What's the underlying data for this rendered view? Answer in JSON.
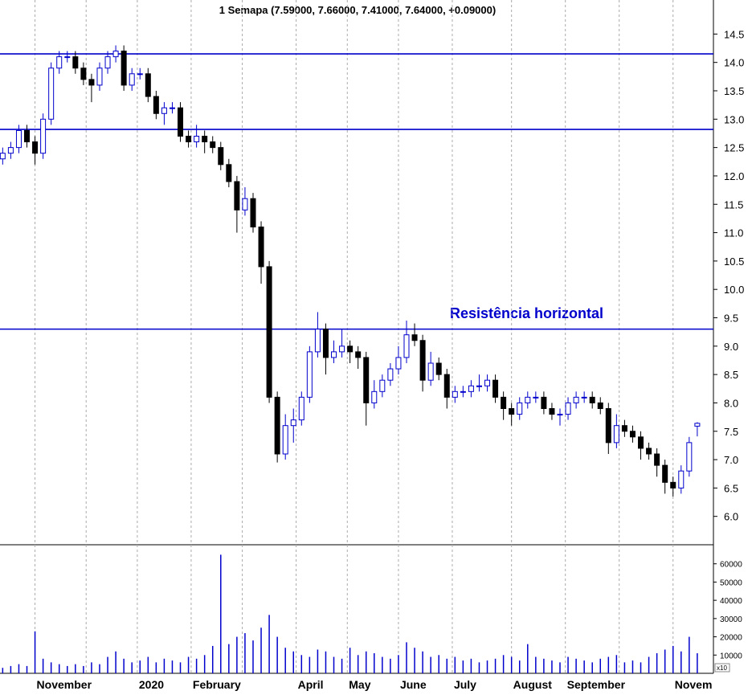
{
  "chart_data": {
    "type": "candlestick",
    "title": "1 Semapa (7.59000, 7.66000, 7.41000, 7.64000, +0.09000)",
    "annotation": "Resistência horizontal",
    "volume_unit_label": "x10",
    "up_color": "#0000cc",
    "down_color": "#000000",
    "line_color": "#0000cc",
    "volume_color": "#0000cc",
    "hlines": [
      14.15,
      12.82,
      9.3
    ],
    "xlim": [
      0,
      265
    ],
    "xticks": [
      {
        "value": 13,
        "label": "November"
      },
      {
        "value": 32,
        "label": null
      },
      {
        "value": 51,
        "label": "2020"
      },
      {
        "value": 71,
        "label": "February"
      },
      {
        "value": 90,
        "label": null
      },
      {
        "value": 110,
        "label": "April"
      },
      {
        "value": 129,
        "label": "May"
      },
      {
        "value": 148,
        "label": "June"
      },
      {
        "value": 168,
        "label": "July"
      },
      {
        "value": 190,
        "label": "August"
      },
      {
        "value": 210,
        "label": "September"
      },
      {
        "value": 230,
        "label": null
      },
      {
        "value": 250,
        "label": "Novem"
      }
    ],
    "ylim": [
      5.5,
      15.1
    ],
    "yticks": [
      {
        "value": 6,
        "label": "6.0"
      },
      6.5,
      {
        "value": 7,
        "label": "7.0"
      },
      7.5,
      {
        "value": 8,
        "label": "8.0"
      },
      8.5,
      {
        "value": 9,
        "label": "9.0"
      },
      9.5,
      {
        "value": 10,
        "label": "10.0"
      },
      10.5,
      {
        "value": 11,
        "label": "11.0"
      },
      11.5,
      {
        "value": 12,
        "label": "12.0"
      },
      12.5,
      {
        "value": 13,
        "label": "13.0"
      },
      13.5,
      {
        "value": 14,
        "label": "14.0"
      },
      14.5
    ],
    "vlim": [
      0,
      70000
    ],
    "vticks": [
      10000,
      20000,
      30000,
      40000,
      50000,
      60000
    ],
    "x": [
      1,
      4,
      7,
      10,
      13,
      16,
      19,
      22,
      25,
      28,
      31,
      34,
      37,
      40,
      43,
      46,
      49,
      52,
      55,
      58,
      61,
      64,
      67,
      70,
      73,
      76,
      79,
      82,
      85,
      88,
      91,
      94,
      97,
      100,
      103,
      106,
      109,
      112,
      115,
      118,
      121,
      124,
      127,
      130,
      133,
      136,
      139,
      142,
      145,
      148,
      151,
      154,
      157,
      160,
      163,
      166,
      169,
      172,
      175,
      178,
      181,
      184,
      187,
      190,
      193,
      196,
      199,
      202,
      205,
      208,
      211,
      214,
      217,
      220,
      223,
      226,
      229,
      232,
      235,
      238,
      241,
      244,
      247,
      250,
      253,
      256,
      259
    ],
    "open": [
      12.3,
      12.4,
      12.5,
      12.8,
      12.6,
      12.4,
      13.0,
      13.9,
      14.1,
      14.1,
      13.9,
      13.7,
      13.6,
      13.9,
      14.1,
      14.2,
      13.6,
      13.8,
      13.8,
      13.4,
      13.1,
      13.2,
      13.2,
      12.7,
      12.6,
      12.7,
      12.6,
      12.5,
      12.2,
      11.9,
      11.4,
      11.6,
      11.1,
      10.4,
      8.1,
      7.1,
      7.6,
      7.7,
      8.1,
      8.9,
      9.3,
      8.8,
      8.9,
      9.0,
      8.9,
      8.8,
      8.0,
      8.2,
      8.4,
      8.6,
      8.8,
      9.2,
      9.1,
      8.4,
      8.7,
      8.5,
      8.1,
      8.2,
      8.2,
      8.3,
      8.3,
      8.4,
      8.1,
      7.9,
      7.8,
      8.0,
      8.1,
      8.1,
      7.9,
      7.8,
      7.8,
      8.0,
      8.1,
      8.1,
      8.0,
      7.9,
      7.3,
      7.6,
      7.5,
      7.4,
      7.2,
      7.1,
      6.9,
      6.6,
      6.5,
      6.8,
      7.59
    ],
    "high": [
      12.5,
      12.6,
      12.9,
      12.9,
      12.7,
      13.1,
      14.0,
      14.2,
      14.2,
      14.2,
      14.0,
      13.8,
      14.0,
      14.2,
      14.3,
      14.3,
      13.9,
      13.9,
      13.9,
      13.5,
      13.3,
      13.3,
      13.3,
      12.8,
      12.9,
      12.8,
      12.7,
      12.6,
      12.3,
      12.0,
      11.8,
      11.7,
      11.2,
      10.5,
      8.2,
      7.8,
      7.9,
      8.2,
      9.0,
      9.6,
      9.4,
      9.1,
      9.3,
      9.1,
      9.0,
      8.9,
      8.4,
      8.5,
      8.7,
      9.0,
      9.45,
      9.4,
      9.2,
      8.9,
      8.8,
      8.6,
      8.3,
      8.3,
      8.4,
      8.5,
      8.5,
      8.5,
      8.2,
      8.0,
      8.1,
      8.2,
      8.2,
      8.2,
      8.0,
      7.9,
      8.1,
      8.2,
      8.2,
      8.2,
      8.1,
      8.0,
      7.8,
      7.7,
      7.6,
      7.5,
      7.3,
      7.2,
      7.0,
      6.7,
      6.9,
      7.4,
      7.66
    ],
    "low": [
      12.2,
      12.3,
      12.4,
      12.5,
      12.2,
      12.3,
      12.9,
      13.8,
      14.0,
      13.8,
      13.6,
      13.3,
      13.5,
      13.8,
      14.0,
      13.5,
      13.5,
      13.7,
      13.3,
      13.0,
      12.9,
      13.1,
      12.6,
      12.5,
      12.5,
      12.4,
      12.4,
      12.1,
      11.8,
      11.0,
      11.3,
      11.0,
      10.1,
      8.0,
      6.95,
      7.0,
      7.3,
      7.6,
      8.0,
      8.8,
      8.5,
      8.7,
      8.8,
      8.7,
      8.6,
      7.6,
      7.9,
      8.1,
      8.3,
      8.5,
      8.7,
      9.0,
      8.2,
      8.3,
      8.4,
      7.9,
      8.0,
      8.1,
      8.1,
      8.2,
      8.2,
      8.0,
      7.7,
      7.6,
      7.7,
      7.9,
      8.0,
      7.8,
      7.7,
      7.6,
      7.7,
      7.9,
      8.0,
      7.9,
      7.8,
      7.1,
      7.2,
      7.4,
      7.3,
      7.0,
      7.0,
      6.7,
      6.4,
      6.35,
      6.4,
      6.7,
      7.41
    ],
    "close": [
      12.4,
      12.5,
      12.8,
      12.6,
      12.4,
      13.0,
      13.9,
      14.1,
      14.1,
      13.9,
      13.7,
      13.6,
      13.9,
      14.1,
      14.2,
      13.6,
      13.8,
      13.8,
      13.4,
      13.1,
      13.2,
      13.2,
      12.7,
      12.6,
      12.7,
      12.6,
      12.5,
      12.2,
      11.9,
      11.4,
      11.6,
      11.1,
      10.4,
      8.1,
      7.1,
      7.6,
      7.7,
      8.1,
      8.9,
      9.3,
      8.8,
      8.9,
      9.0,
      8.9,
      8.8,
      8.0,
      8.2,
      8.4,
      8.6,
      8.8,
      9.2,
      9.1,
      8.4,
      8.7,
      8.5,
      8.1,
      8.2,
      8.2,
      8.3,
      8.3,
      8.4,
      8.1,
      7.9,
      7.8,
      8.0,
      8.1,
      8.1,
      7.9,
      7.8,
      7.8,
      8.0,
      8.1,
      8.1,
      8.0,
      7.9,
      7.3,
      7.6,
      7.5,
      7.4,
      7.2,
      7.1,
      6.9,
      6.6,
      6.5,
      6.8,
      7.3,
      7.64
    ],
    "volume": [
      3000,
      4000,
      5000,
      4000,
      23000,
      8000,
      6000,
      5000,
      4000,
      5000,
      4000,
      6000,
      5000,
      9000,
      12000,
      8000,
      6000,
      7000,
      9000,
      6000,
      8000,
      7000,
      6000,
      9000,
      8000,
      10000,
      15000,
      65000,
      16000,
      20000,
      22000,
      18000,
      25000,
      32000,
      20000,
      14000,
      12000,
      10000,
      9000,
      13000,
      12000,
      9000,
      8000,
      14000,
      10000,
      12000,
      11000,
      9000,
      8000,
      10000,
      17000,
      14000,
      12000,
      9000,
      10000,
      8000,
      9000,
      7000,
      8000,
      6000,
      7000,
      8000,
      10000,
      9000,
      7000,
      16000,
      9000,
      8000,
      7000,
      6000,
      9000,
      8000,
      7000,
      6000,
      8000,
      9000,
      10000,
      6000,
      7000,
      6000,
      9000,
      11000,
      13000,
      15000,
      12000,
      20000,
      11000
    ]
  }
}
